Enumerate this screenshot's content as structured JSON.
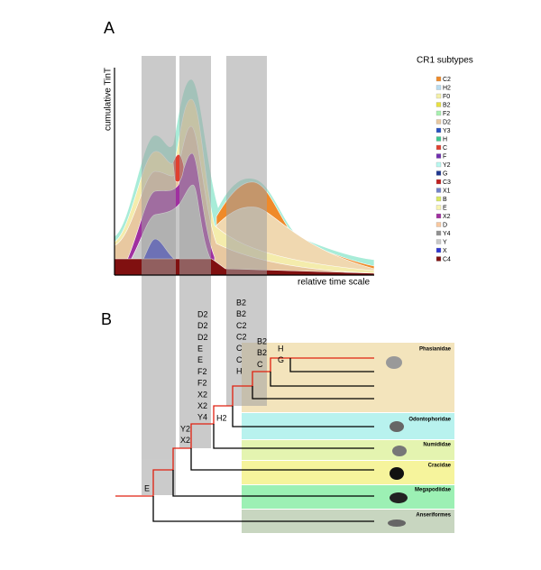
{
  "panel_a": {
    "label": "A",
    "y_axis_label": "cumulative TinT",
    "x_axis_label": "relative time scale",
    "legend": {
      "title": "CR1 subtypes",
      "items": [
        {
          "name": "C2",
          "color": "#ef8a2a"
        },
        {
          "name": "H2",
          "color": "#b8dcf0"
        },
        {
          "name": "F0",
          "color": "#f4f0a8"
        },
        {
          "name": "B2",
          "color": "#e8e040"
        },
        {
          "name": "F2",
          "color": "#a8f0b0"
        },
        {
          "name": "D2",
          "color": "#e8c8a0"
        },
        {
          "name": "Y3",
          "color": "#2850c0"
        },
        {
          "name": "H",
          "color": "#40c890"
        },
        {
          "name": "C",
          "color": "#e04030"
        },
        {
          "name": "F",
          "color": "#7030b0"
        },
        {
          "name": "Y2",
          "color": "#b8f8f0"
        },
        {
          "name": "G",
          "color": "#203890"
        },
        {
          "name": "C3",
          "color": "#c02020"
        },
        {
          "name": "X1",
          "color": "#7080c8"
        },
        {
          "name": "B",
          "color": "#d8e860"
        },
        {
          "name": "E",
          "color": "#f8f4b0"
        },
        {
          "name": "X2",
          "color": "#a030a0"
        },
        {
          "name": "D",
          "color": "#f8c8a0"
        },
        {
          "name": "Y4",
          "color": "#909090"
        },
        {
          "name": "Y",
          "color": "#c8c8c8"
        },
        {
          "name": "X",
          "color": "#3038d0"
        },
        {
          "name": "C4",
          "color": "#801010"
        }
      ]
    }
  },
  "panel_b": {
    "label": "B",
    "clades": [
      "Phasianidae",
      "Odontophoridae",
      "Numididae",
      "Cracidae",
      "Megapodiidae",
      "Anseriformes"
    ],
    "event_columns": [
      [
        "E"
      ],
      [
        "Y2",
        "X2"
      ],
      [
        "D2",
        "D2",
        "D2",
        "E",
        "E",
        "F2",
        "F2",
        "X2",
        "X2",
        "Y4"
      ],
      [
        "H2"
      ],
      [
        "B2",
        "B2",
        "C2",
        "C2",
        "C",
        "C",
        "H"
      ],
      [
        "B2",
        "B2",
        "C"
      ],
      [
        "H",
        "G"
      ]
    ]
  }
}
